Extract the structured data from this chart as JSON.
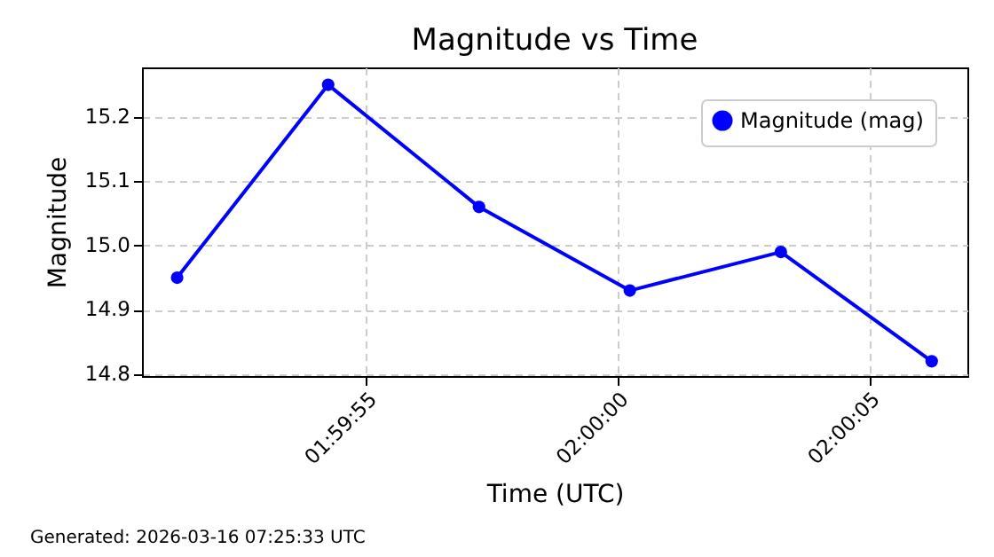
{
  "chart_data": {
    "type": "line",
    "title": "Magnitude vs Time",
    "xlabel": "Time (UTC)",
    "ylabel": "Magnitude",
    "x": [
      1.997569,
      1.998403,
      1.999236,
      2.000069,
      2.000903,
      2.001736
    ],
    "series": [
      {
        "name": "Magnitude (mag)",
        "color": "#0000ff",
        "values": [
          14.95,
          15.25,
          15.06,
          14.93,
          14.99,
          14.82
        ]
      }
    ],
    "xlim": [
      1.997375,
      2.001933
    ],
    "xticks": [
      {
        "value": 1.998611,
        "label": "01:59:55"
      },
      {
        "value": 2,
        "label": "02:00:00"
      },
      {
        "value": 2.001389,
        "label": "02:00:05"
      }
    ],
    "ylim": [
      14.797,
      15.277
    ],
    "yticks": [
      14.8,
      14.9,
      {
        "value": 15,
        "label": "15.0"
      },
      15.1,
      15.2
    ],
    "grid": true,
    "legend": "top right",
    "marker": "circle",
    "line_style": "solid",
    "annotations": [
      "Generated: 2026-03-16 07:25:33 UTC"
    ]
  }
}
